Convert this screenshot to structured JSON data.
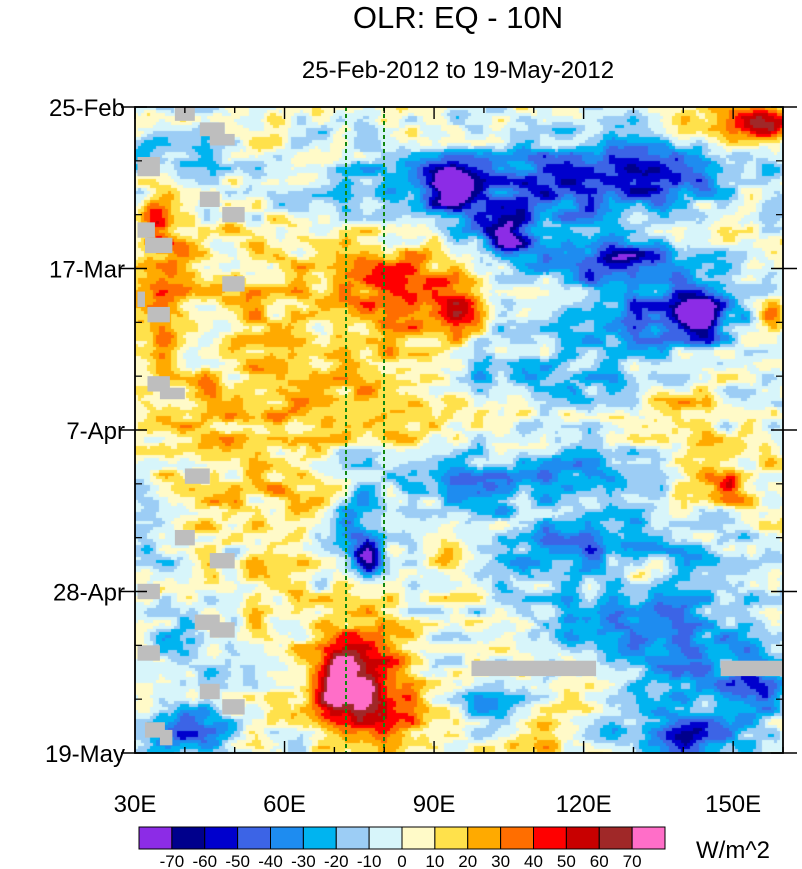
{
  "chart_data": {
    "type": "heatmap",
    "title": "OLR: EQ - 10N",
    "subtitle": "25-Feb-2012 to 19-May-2012",
    "x_range": [
      30,
      160
    ],
    "x_ticks": [
      {
        "value": 30,
        "label": "30E"
      },
      {
        "value": 60,
        "label": "60E"
      },
      {
        "value": 90,
        "label": "90E"
      },
      {
        "value": 120,
        "label": "120E"
      },
      {
        "value": 150,
        "label": "150E"
      }
    ],
    "y_range_days": [
      0,
      84
    ],
    "y_ticks": [
      {
        "value": 0,
        "label": "25-Feb"
      },
      {
        "value": 21,
        "label": "17-Mar"
      },
      {
        "value": 42,
        "label": "7-Apr"
      },
      {
        "value": 63,
        "label": "28-Apr"
      },
      {
        "value": 84,
        "label": "19-May"
      }
    ],
    "reference_lines_lon": [
      72.5,
      80
    ],
    "colorbar": {
      "units": "W/m^2",
      "levels": [
        -70,
        -60,
        -50,
        -40,
        -30,
        -20,
        -10,
        0,
        10,
        20,
        30,
        40,
        50,
        60,
        70
      ],
      "colors": [
        "#8c2ce6",
        "#00008c",
        "#0000cd",
        "#3c64e6",
        "#1e8cf0",
        "#00b4f0",
        "#9ccdf5",
        "#d7f5fa",
        "#fffac8",
        "#ffe14b",
        "#ffaa00",
        "#ff6e00",
        "#ff0000",
        "#c80000",
        "#a02828",
        "#ff6ec8"
      ]
    },
    "missing_color": "#bebebe",
    "blobs": [
      {
        "lon": 34,
        "day": 15,
        "rl": 3,
        "rd": 3,
        "v": 45
      },
      {
        "lon": 38,
        "day": 21,
        "rl": 6,
        "rd": 8,
        "v": 30
      },
      {
        "lon": 33,
        "day": 28,
        "rl": 5,
        "rd": 5,
        "v": 25
      },
      {
        "lon": 52,
        "day": 24,
        "rl": 8,
        "rd": 12,
        "v": 8
      },
      {
        "lon": 62,
        "day": 30,
        "rl": 12,
        "rd": 15,
        "v": 15
      },
      {
        "lon": 80,
        "day": 22,
        "rl": 12,
        "rd": 5,
        "v": 25
      },
      {
        "lon": 85,
        "day": 26,
        "rl": 10,
        "rd": 6,
        "v": 30
      },
      {
        "lon": 95,
        "day": 26,
        "rl": 4,
        "rd": 3,
        "v": 45
      },
      {
        "lon": 80,
        "day": 39,
        "rl": 14,
        "rd": 5,
        "v": 28
      },
      {
        "lon": 45,
        "day": 40,
        "rl": 14,
        "rd": 6,
        "v": 18
      },
      {
        "lon": 40,
        "day": 52,
        "rl": 10,
        "rd": 5,
        "v": 18
      },
      {
        "lon": 55,
        "day": 62,
        "rl": 8,
        "rd": 8,
        "v": 10
      },
      {
        "lon": 74,
        "day": 72,
        "rl": 9,
        "rd": 8,
        "v": 45
      },
      {
        "lon": 78,
        "day": 78,
        "rl": 10,
        "rd": 5,
        "v": 40
      },
      {
        "lon": 71,
        "day": 75,
        "rl": 4,
        "rd": 4,
        "v": 55
      },
      {
        "lon": 92,
        "day": 58,
        "rl": 4,
        "rd": 3,
        "v": 25
      },
      {
        "lon": 150,
        "day": 2,
        "rl": 12,
        "rd": 3,
        "v": 35
      },
      {
        "lon": 157,
        "day": 2,
        "rl": 4,
        "rd": 2,
        "v": 50
      },
      {
        "lon": 145,
        "day": 48,
        "rl": 10,
        "rd": 4,
        "v": 25
      },
      {
        "lon": 149,
        "day": 49,
        "rl": 3,
        "rd": 2,
        "v": 45
      },
      {
        "lon": 140,
        "day": 40,
        "rl": 8,
        "rd": 5,
        "v": 15
      },
      {
        "lon": 110,
        "day": 82,
        "rl": 8,
        "rd": 3,
        "v": 20
      },
      {
        "lon": 130,
        "day": 60,
        "rl": 6,
        "rd": 3,
        "v": 15
      },
      {
        "lon": 158,
        "day": 27,
        "rl": 3,
        "rd": 2,
        "v": 40
      },
      {
        "lon": 60,
        "day": 50,
        "rl": 8,
        "rd": 4,
        "v": 18
      },
      {
        "lon": 108,
        "day": 11,
        "rl": 25,
        "rd": 6,
        "v": -45
      },
      {
        "lon": 93,
        "day": 10,
        "rl": 5,
        "rd": 3,
        "v": -65
      },
      {
        "lon": 135,
        "day": 8,
        "rl": 16,
        "rd": 4,
        "v": -50
      },
      {
        "lon": 128,
        "day": 20,
        "rl": 14,
        "rd": 3,
        "v": -55
      },
      {
        "lon": 135,
        "day": 27,
        "rl": 20,
        "rd": 5,
        "v": -40
      },
      {
        "lon": 143,
        "day": 27,
        "rl": 5,
        "rd": 3,
        "v": -65
      },
      {
        "lon": 105,
        "day": 17,
        "rl": 5,
        "rd": 3,
        "v": -55
      },
      {
        "lon": 110,
        "day": 35,
        "rl": 20,
        "rd": 4,
        "v": -25
      },
      {
        "lon": 120,
        "day": 48,
        "rl": 22,
        "rd": 4,
        "v": -30
      },
      {
        "lon": 95,
        "day": 49,
        "rl": 12,
        "rd": 3,
        "v": -25
      },
      {
        "lon": 120,
        "day": 57,
        "rl": 18,
        "rd": 5,
        "v": -35
      },
      {
        "lon": 75,
        "day": 55,
        "rl": 5,
        "rd": 8,
        "v": -30
      },
      {
        "lon": 77,
        "day": 59,
        "rl": 3,
        "rd": 2,
        "v": -65
      },
      {
        "lon": 140,
        "day": 70,
        "rl": 14,
        "rd": 8,
        "v": -40
      },
      {
        "lon": 140,
        "day": 82,
        "rl": 12,
        "rd": 3,
        "v": -45
      },
      {
        "lon": 40,
        "day": 81,
        "rl": 8,
        "rd": 3,
        "v": -45
      },
      {
        "lon": 40,
        "day": 70,
        "rl": 6,
        "rd": 3,
        "v": -30
      },
      {
        "lon": 100,
        "day": 78,
        "rl": 8,
        "rd": 4,
        "v": -25
      },
      {
        "lon": 40,
        "day": 6,
        "rl": 10,
        "rd": 4,
        "v": -25
      },
      {
        "lon": 70,
        "day": 10,
        "rl": 16,
        "rd": 4,
        "v": -15
      },
      {
        "lon": 120,
        "day": 67,
        "rl": 10,
        "rd": 3,
        "v": -30
      },
      {
        "lon": 35,
        "day": 55,
        "rl": 5,
        "rd": 5,
        "v": -20
      },
      {
        "lon": 155,
        "day": 75,
        "rl": 6,
        "rd": 5,
        "v": -35
      }
    ],
    "missing_boxes": [
      {
        "lon0": 38,
        "lon1": 42,
        "day0": 0,
        "day1": 1.8
      },
      {
        "lon0": 43,
        "lon1": 48,
        "day0": 2,
        "day1": 3.8
      },
      {
        "lon0": 45,
        "lon1": 50,
        "day0": 3.5,
        "day1": 5
      },
      {
        "lon0": 30.5,
        "lon1": 35,
        "day0": 6.5,
        "day1": 9
      },
      {
        "lon0": 43,
        "lon1": 47,
        "day0": 11,
        "day1": 13
      },
      {
        "lon0": 47.5,
        "lon1": 52,
        "day0": 13,
        "day1": 15
      },
      {
        "lon0": 30.5,
        "lon1": 34,
        "day0": 15,
        "day1": 17
      },
      {
        "lon0": 32,
        "lon1": 37.5,
        "day0": 17,
        "day1": 19
      },
      {
        "lon0": 47.5,
        "lon1": 52,
        "day0": 22,
        "day1": 24
      },
      {
        "lon0": 30.5,
        "lon1": 32,
        "day0": 24,
        "day1": 26
      },
      {
        "lon0": 32.5,
        "lon1": 37,
        "day0": 26,
        "day1": 28
      },
      {
        "lon0": 32.5,
        "lon1": 37,
        "day0": 35,
        "day1": 37
      },
      {
        "lon0": 35,
        "lon1": 40,
        "day0": 36.5,
        "day1": 38
      },
      {
        "lon0": 40,
        "lon1": 45,
        "day0": 47,
        "day1": 49
      },
      {
        "lon0": 38,
        "lon1": 42,
        "day0": 55,
        "day1": 57
      },
      {
        "lon0": 45,
        "lon1": 50,
        "day0": 58,
        "day1": 60
      },
      {
        "lon0": 30.5,
        "lon1": 35,
        "day0": 62,
        "day1": 64
      },
      {
        "lon0": 42,
        "lon1": 47,
        "day0": 66,
        "day1": 68
      },
      {
        "lon0": 45,
        "lon1": 50,
        "day0": 67,
        "day1": 69
      },
      {
        "lon0": 30.5,
        "lon1": 35,
        "day0": 70,
        "day1": 72
      },
      {
        "lon0": 43,
        "lon1": 47,
        "day0": 75,
        "day1": 77
      },
      {
        "lon0": 47.5,
        "lon1": 52,
        "day0": 77,
        "day1": 79
      },
      {
        "lon0": 32,
        "lon1": 36,
        "day0": 80,
        "day1": 82
      },
      {
        "lon0": 35,
        "lon1": 37.5,
        "day0": 81,
        "day1": 83
      },
      {
        "lon0": 97.5,
        "lon1": 122.5,
        "day0": 72,
        "day1": 74
      },
      {
        "lon0": 147.5,
        "lon1": 160,
        "day0": 72,
        "day1": 74
      }
    ]
  }
}
